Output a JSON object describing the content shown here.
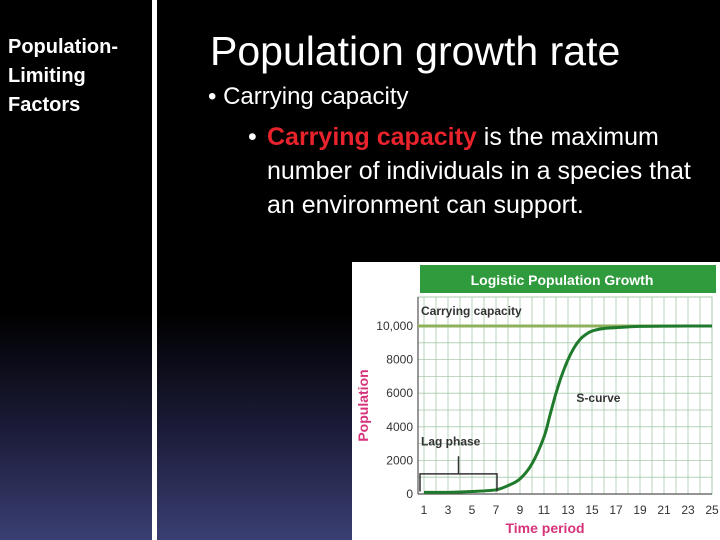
{
  "sidebar": {
    "title": "Population-\nLimiting\nFactors"
  },
  "slide": {
    "title": "Population growth rate",
    "bullet1": "Carrying capacity",
    "bullet2": {
      "term": "Carrying capacity",
      "rest": " is the maximum number of individuals in a species that an environment can support."
    },
    "bullet_char": "•"
  },
  "chart_data": {
    "type": "line",
    "title": "Logistic Population Growth",
    "xlabel": "Time period",
    "ylabel": "Population",
    "xlim": [
      0.5,
      25
    ],
    "ylim": [
      0,
      10000
    ],
    "x_ticks": [
      "1",
      "3",
      "5",
      "7",
      "9",
      "11",
      "13",
      "15",
      "17",
      "19",
      "21",
      "23",
      "25"
    ],
    "y_ticks": [
      "0",
      "2000",
      "4000",
      "6000",
      "8000",
      "10,000"
    ],
    "grid": true,
    "colors": {
      "title_band": "#2f9b3d",
      "curve": "#1f7a2c",
      "carrying_line": "#8fb05a",
      "axis_label": "#d6337a",
      "grid": "#a9c9ad"
    },
    "series": [
      {
        "x": [
          1,
          3,
          5,
          7,
          8,
          9,
          10,
          11,
          11.5,
          12,
          12.5,
          13,
          13.5,
          14,
          14.5,
          15,
          16,
          17,
          18,
          19,
          21,
          23,
          25
        ],
        "y": [
          100,
          100,
          150,
          250,
          500,
          900,
          1800,
          3400,
          4700,
          6000,
          7100,
          8000,
          8700,
          9200,
          9500,
          9700,
          9850,
          9900,
          9950,
          9980,
          9990,
          10000,
          10000
        ]
      }
    ],
    "carrying_capacity": 10000,
    "annotations": {
      "carrying": "Carrying capacity",
      "s_curve": "S-curve",
      "lag": "Lag phase"
    },
    "lag_phase_range": [
      0.5,
      7
    ]
  }
}
